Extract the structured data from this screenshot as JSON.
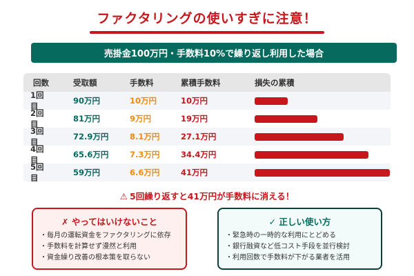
{
  "title": "ファクタリングの使いすぎに注意！",
  "banner": "売掛金100万円・手数料10%で繰り返し利用した場合",
  "colors": {
    "accent_red": "#c8161d",
    "accent_green": "#066a5e",
    "accent_orange": "#f28c0f"
  },
  "table": {
    "headers": [
      "回数",
      "受取額",
      "手数料",
      "累積手数料",
      "損失の累積"
    ],
    "rows": [
      {
        "count": "1回目",
        "received": "90万円",
        "fee": "10万円",
        "cumulative": "10万円",
        "bar_pct": 24.5
      },
      {
        "count": "2回目",
        "received": "81万円",
        "fee": "9万円",
        "cumulative": "19万円",
        "bar_pct": 46.4
      },
      {
        "count": "3回目",
        "received": "72.9万円",
        "fee": "8.1万円",
        "cumulative": "27.1万円",
        "bar_pct": 65.8
      },
      {
        "count": "4回目",
        "received": "65.6万円",
        "fee": "7.3万円",
        "cumulative": "34.4万円",
        "bar_pct": 84.2
      },
      {
        "count": "5回目",
        "received": "59万円",
        "fee": "6.6万円",
        "cumulative": "41万円",
        "bar_pct": 100
      }
    ]
  },
  "warning": {
    "icon": "warning-triangle-icon",
    "icon_glyph": "⚠",
    "text": "5回繰り返すと41万円が手数料に消える！"
  },
  "dont_box": {
    "icon_glyph": "✗",
    "title": "やってはいけないこと",
    "items": [
      "毎月の運転資金をファクタリングに依存",
      "手数料を計算せず漫然と利用",
      "資金繰り改善の根本策を取らない"
    ]
  },
  "do_box": {
    "icon_glyph": "✓",
    "title": "正しい使い方",
    "items": [
      "緊急時の一時的な利用にとどめる",
      "銀行融資など低コスト手段を並行検討",
      "利用回数で手数料が下がる業者を活用"
    ]
  },
  "chart_data": {
    "type": "bar",
    "orientation": "horizontal",
    "title": "損失の累積",
    "categories": [
      "1回目",
      "2回目",
      "3回目",
      "4回目",
      "5回目"
    ],
    "series": [
      {
        "name": "受取額 (万円)",
        "values": [
          90,
          81,
          72.9,
          65.6,
          59
        ]
      },
      {
        "name": "手数料 (万円)",
        "values": [
          10,
          9,
          8.1,
          7.3,
          6.6
        ]
      },
      {
        "name": "累積手数料 (万円)",
        "values": [
          10,
          19,
          27.1,
          34.4,
          41
        ]
      }
    ],
    "bar_series": "累積手数料 (万円)",
    "xlabel": "",
    "ylabel": ""
  }
}
